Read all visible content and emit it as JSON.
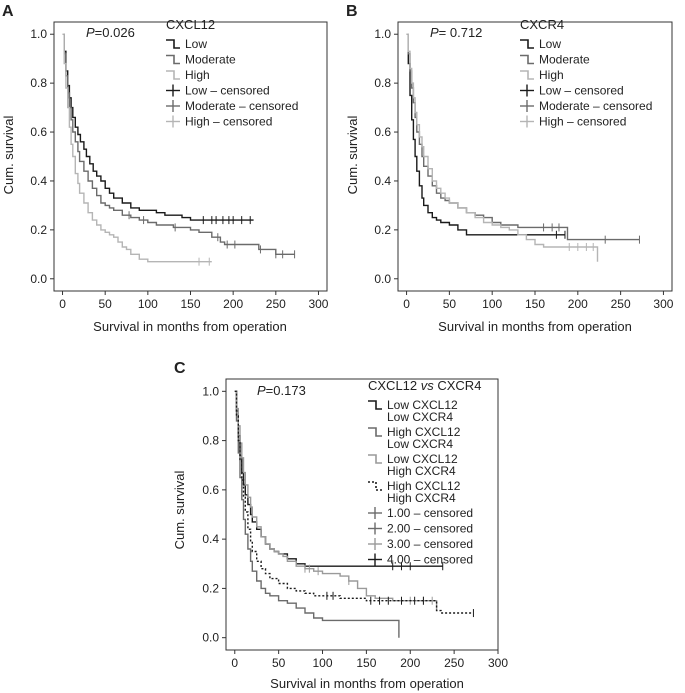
{
  "chart_data": [
    {
      "panel": "A",
      "type": "line",
      "subtype": "kaplan-meier",
      "pvalue_label": "P",
      "pvalue_text": "=0.026",
      "legend_title": "CXCL12",
      "xlabel": "Survival in months from operation",
      "ylabel": "Cum. survival",
      "xlim": [
        -10,
        310
      ],
      "ylim": [
        -0.05,
        1.05
      ],
      "xticks": [
        0,
        50,
        100,
        150,
        200,
        250,
        300
      ],
      "xtick_labels": [
        "0",
        "50",
        "100",
        "150",
        "200",
        "250",
        "300"
      ],
      "yticks": [
        0.0,
        0.2,
        0.4,
        0.6,
        0.8,
        1.0
      ],
      "ytick_labels": [
        "0.0",
        "0.2",
        "0.4",
        "0.6",
        "0.8",
        "1.0"
      ],
      "legend": [
        {
          "label": "Low",
          "color": "#1a1a1a",
          "kind": "line"
        },
        {
          "label": "Moderate",
          "color": "#6b6b6b",
          "kind": "line"
        },
        {
          "label": "High",
          "color": "#b5b5b5",
          "kind": "line"
        },
        {
          "label": "Low – censored",
          "color": "#1a1a1a",
          "kind": "cross"
        },
        {
          "label": "Moderate – censored",
          "color": "#6b6b6b",
          "kind": "cross"
        },
        {
          "label": "High – censored",
          "color": "#b5b5b5",
          "kind": "cross"
        }
      ],
      "series": [
        {
          "name": "Low",
          "color": "#1a1a1a",
          "dashed": false,
          "x": [
            0,
            2,
            4,
            6,
            8,
            10,
            12,
            15,
            18,
            21,
            25,
            28,
            32,
            36,
            40,
            45,
            50,
            55,
            60,
            70,
            80,
            90,
            100,
            110,
            120,
            130,
            140,
            150,
            160,
            224
          ],
          "y": [
            1.0,
            0.93,
            0.85,
            0.79,
            0.74,
            0.7,
            0.66,
            0.62,
            0.59,
            0.56,
            0.53,
            0.5,
            0.47,
            0.44,
            0.42,
            0.4,
            0.37,
            0.35,
            0.33,
            0.31,
            0.29,
            0.28,
            0.28,
            0.27,
            0.26,
            0.26,
            0.25,
            0.24,
            0.24,
            0.24
          ],
          "censored_x": [
            165,
            175,
            180,
            188,
            195,
            200,
            210,
            220
          ]
        },
        {
          "name": "Moderate",
          "color": "#6b6b6b",
          "dashed": false,
          "x": [
            0,
            2,
            4,
            6,
            8,
            10,
            12,
            15,
            18,
            20,
            25,
            30,
            35,
            40,
            45,
            50,
            55,
            60,
            70,
            80,
            90,
            100,
            110,
            115,
            120,
            130,
            140,
            150,
            160,
            175,
            185,
            190,
            215,
            230,
            240,
            250,
            255,
            272
          ],
          "y": [
            1.0,
            0.92,
            0.83,
            0.76,
            0.7,
            0.65,
            0.6,
            0.56,
            0.52,
            0.48,
            0.44,
            0.4,
            0.37,
            0.34,
            0.31,
            0.3,
            0.29,
            0.28,
            0.26,
            0.25,
            0.24,
            0.23,
            0.22,
            0.22,
            0.22,
            0.21,
            0.21,
            0.2,
            0.19,
            0.17,
            0.15,
            0.14,
            0.14,
            0.12,
            0.12,
            0.1,
            0.1,
            0.1
          ],
          "censored_x": [
            78,
            95,
            132,
            182,
            193,
            202,
            232,
            250,
            258,
            272
          ]
        },
        {
          "name": "High",
          "color": "#b5b5b5",
          "dashed": false,
          "x": [
            0,
            2,
            4,
            6,
            8,
            10,
            12,
            15,
            18,
            20,
            25,
            30,
            35,
            40,
            45,
            50,
            55,
            60,
            65,
            70,
            75,
            80,
            90,
            100,
            110,
            120,
            130,
            140,
            150,
            160,
            175
          ],
          "y": [
            1.0,
            0.88,
            0.78,
            0.7,
            0.62,
            0.55,
            0.5,
            0.43,
            0.39,
            0.35,
            0.31,
            0.27,
            0.24,
            0.22,
            0.2,
            0.19,
            0.18,
            0.17,
            0.15,
            0.13,
            0.12,
            0.1,
            0.08,
            0.07,
            0.07,
            0.07,
            0.07,
            0.07,
            0.07,
            0.07,
            0.07
          ],
          "censored_x": [
            160,
            172
          ]
        }
      ]
    },
    {
      "panel": "B",
      "type": "line",
      "subtype": "kaplan-meier",
      "pvalue_label": "P",
      "pvalue_text": "= 0.712",
      "legend_title": "CXCR4",
      "xlabel": "Survival in months from operation",
      "ylabel": "Cum. survival",
      "xlim": [
        -10,
        310
      ],
      "ylim": [
        -0.05,
        1.05
      ],
      "xticks": [
        0,
        50,
        100,
        150,
        200,
        250,
        300
      ],
      "xtick_labels": [
        "0",
        "50",
        "100",
        "150",
        "200",
        "250",
        "300"
      ],
      "yticks": [
        0.0,
        0.2,
        0.4,
        0.6,
        0.8,
        1.0
      ],
      "ytick_labels": [
        "0.0",
        "0.2",
        "0.4",
        "0.6",
        "0.8",
        "1.0"
      ],
      "legend": [
        {
          "label": "Low",
          "color": "#1a1a1a",
          "kind": "line"
        },
        {
          "label": "Moderate",
          "color": "#6b6b6b",
          "kind": "line"
        },
        {
          "label": "High",
          "color": "#b5b5b5",
          "kind": "line"
        },
        {
          "label": "Low – censored",
          "color": "#1a1a1a",
          "kind": "cross"
        },
        {
          "label": "Moderate – censored",
          "color": "#6b6b6b",
          "kind": "cross"
        },
        {
          "label": "High – censored",
          "color": "#b5b5b5",
          "kind": "cross"
        }
      ],
      "series": [
        {
          "name": "Low",
          "color": "#1a1a1a",
          "dashed": false,
          "x": [
            0,
            2,
            4,
            6,
            8,
            10,
            12,
            15,
            18,
            20,
            25,
            30,
            35,
            40,
            50,
            60,
            70,
            80,
            100,
            120,
            150,
            185
          ],
          "y": [
            1.0,
            0.88,
            0.75,
            0.65,
            0.57,
            0.5,
            0.44,
            0.38,
            0.33,
            0.3,
            0.27,
            0.25,
            0.24,
            0.23,
            0.22,
            0.2,
            0.18,
            0.18,
            0.18,
            0.18,
            0.18,
            0.18
          ],
          "censored_x": [
            175,
            185
          ]
        },
        {
          "name": "Moderate",
          "color": "#6b6b6b",
          "dashed": false,
          "x": [
            0,
            2,
            4,
            6,
            8,
            10,
            12,
            15,
            18,
            20,
            25,
            30,
            35,
            40,
            45,
            50,
            60,
            70,
            80,
            90,
            100,
            110,
            120,
            130,
            150,
            180,
            188,
            200,
            230,
            272
          ],
          "y": [
            1.0,
            0.92,
            0.85,
            0.78,
            0.72,
            0.66,
            0.6,
            0.55,
            0.5,
            0.46,
            0.42,
            0.38,
            0.35,
            0.33,
            0.32,
            0.31,
            0.29,
            0.27,
            0.26,
            0.25,
            0.23,
            0.22,
            0.22,
            0.21,
            0.21,
            0.21,
            0.16,
            0.16,
            0.16,
            0.16
          ],
          "censored_x": [
            160,
            170,
            178,
            232,
            272
          ]
        },
        {
          "name": "High",
          "color": "#b5b5b5",
          "dashed": false,
          "x": [
            0,
            2,
            4,
            6,
            8,
            10,
            12,
            15,
            18,
            20,
            25,
            30,
            35,
            40,
            45,
            50,
            60,
            70,
            80,
            90,
            100,
            110,
            120,
            130,
            140,
            150,
            160,
            170,
            180,
            220,
            223
          ],
          "y": [
            1.0,
            0.93,
            0.86,
            0.8,
            0.74,
            0.68,
            0.63,
            0.58,
            0.54,
            0.5,
            0.45,
            0.4,
            0.37,
            0.35,
            0.33,
            0.31,
            0.29,
            0.27,
            0.25,
            0.23,
            0.22,
            0.21,
            0.2,
            0.18,
            0.16,
            0.14,
            0.13,
            0.13,
            0.13,
            0.13,
            0.07
          ],
          "censored_x": [
            190,
            200,
            210,
            218
          ]
        }
      ]
    },
    {
      "panel": "C",
      "type": "line",
      "subtype": "kaplan-meier",
      "pvalue_label": "P",
      "pvalue_text": "=0.173",
      "legend_title": "CXCL12 vs CXCR4",
      "legend_title_parts": [
        "CXCL12 ",
        "vs",
        " CXCR4"
      ],
      "xlabel": "Survival in months from operation",
      "ylabel": "Cum. survival",
      "xlim": [
        -10,
        300
      ],
      "ylim": [
        -0.05,
        1.05
      ],
      "xticks": [
        0,
        50,
        100,
        150,
        200,
        250,
        300
      ],
      "xtick_labels": [
        "0",
        "50",
        "100",
        "150",
        "200",
        "250",
        "300"
      ],
      "yticks": [
        0.0,
        0.2,
        0.4,
        0.6,
        0.8,
        1.0
      ],
      "ytick_labels": [
        "0.0",
        "0.2",
        "0.4",
        "0.6",
        "0.8",
        "1.0"
      ],
      "legend": [
        {
          "label": "Low CXCL12",
          "label2": "Low CXCR4",
          "color": "#1a1a1a",
          "kind": "line"
        },
        {
          "label": "High CXCL12",
          "label2": "Low CXCR4",
          "color": "#6b6b6b",
          "kind": "line"
        },
        {
          "label": "Low CXCL12",
          "label2": "High CXCR4",
          "color": "#9a9a9a",
          "kind": "line"
        },
        {
          "label": "High CXCL12",
          "label2": "High CXCR4",
          "color": "#1a1a1a",
          "kind": "dotted"
        },
        {
          "label": "1.00 – censored",
          "color": "#6b6b6b",
          "kind": "cross"
        },
        {
          "label": "2.00 – censored",
          "color": "#6b6b6b",
          "kind": "cross"
        },
        {
          "label": "3.00 – censored",
          "color": "#9a9a9a",
          "kind": "cross"
        },
        {
          "label": "4.00 – censored",
          "color": "#1a1a1a",
          "kind": "cross"
        }
      ],
      "series": [
        {
          "name": "Low CXCL12 / Low CXCR4",
          "color": "#1a1a1a",
          "dashed": false,
          "x": [
            0,
            2,
            4,
            6,
            8,
            10,
            12,
            15,
            18,
            20,
            25,
            30,
            35,
            40,
            45,
            50,
            60,
            70,
            80,
            90,
            100,
            120,
            150,
            237
          ],
          "y": [
            1.0,
            0.92,
            0.82,
            0.74,
            0.67,
            0.62,
            0.58,
            0.54,
            0.5,
            0.47,
            0.44,
            0.41,
            0.38,
            0.36,
            0.35,
            0.34,
            0.32,
            0.3,
            0.29,
            0.29,
            0.29,
            0.29,
            0.29,
            0.29
          ],
          "censored_x": [
            180,
            190,
            200,
            237
          ]
        },
        {
          "name": "High CXCL12 / Low CXCR4",
          "color": "#6b6b6b",
          "dashed": false,
          "x": [
            0,
            2,
            4,
            6,
            8,
            10,
            12,
            15,
            18,
            20,
            25,
            30,
            35,
            40,
            50,
            60,
            70,
            80,
            90,
            100,
            110,
            130,
            150,
            187
          ],
          "y": [
            1.0,
            0.88,
            0.75,
            0.65,
            0.56,
            0.48,
            0.42,
            0.36,
            0.31,
            0.27,
            0.23,
            0.2,
            0.18,
            0.17,
            0.15,
            0.14,
            0.12,
            0.1,
            0.08,
            0.07,
            0.07,
            0.07,
            0.07,
            0.0
          ],
          "censored_x": []
        },
        {
          "name": "Low CXCL12 / High CXCR4",
          "color": "#9a9a9a",
          "dashed": false,
          "x": [
            0,
            2,
            4,
            6,
            8,
            10,
            12,
            15,
            18,
            20,
            25,
            30,
            35,
            40,
            45,
            50,
            55,
            60,
            70,
            80,
            90,
            100,
            110,
            120,
            130,
            140,
            150,
            160,
            180,
            220,
            230
          ],
          "y": [
            1.0,
            0.93,
            0.86,
            0.79,
            0.73,
            0.67,
            0.62,
            0.57,
            0.53,
            0.49,
            0.45,
            0.41,
            0.38,
            0.36,
            0.35,
            0.34,
            0.33,
            0.31,
            0.29,
            0.28,
            0.27,
            0.26,
            0.26,
            0.25,
            0.23,
            0.2,
            0.17,
            0.16,
            0.15,
            0.15,
            0.11
          ],
          "censored_x": [
            80,
            85,
            95,
            130,
            200,
            215,
            225
          ]
        },
        {
          "name": "High CXCL12 / High CXCR4",
          "color": "#1a1a1a",
          "dashed": true,
          "x": [
            0,
            2,
            4,
            6,
            8,
            10,
            12,
            15,
            18,
            20,
            25,
            30,
            35,
            40,
            50,
            60,
            70,
            80,
            90,
            100,
            110,
            120,
            140,
            150,
            160,
            180,
            200,
            220,
            230,
            235,
            260,
            272
          ],
          "y": [
            1.0,
            0.9,
            0.8,
            0.72,
            0.64,
            0.57,
            0.51,
            0.44,
            0.39,
            0.35,
            0.31,
            0.28,
            0.26,
            0.24,
            0.22,
            0.2,
            0.19,
            0.18,
            0.17,
            0.17,
            0.17,
            0.16,
            0.16,
            0.15,
            0.15,
            0.15,
            0.15,
            0.15,
            0.11,
            0.1,
            0.1,
            0.1
          ],
          "censored_x": [
            105,
            112,
            155,
            165,
            175,
            190,
            205,
            215,
            272
          ]
        }
      ]
    }
  ]
}
